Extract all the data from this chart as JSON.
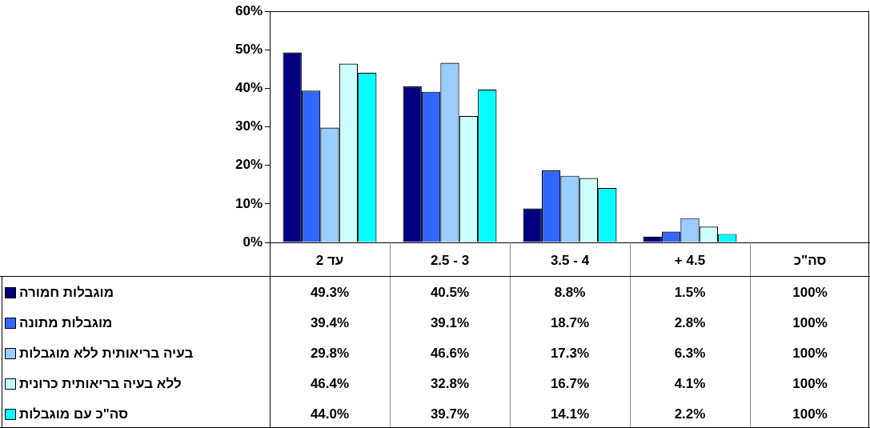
{
  "chart_data": {
    "type": "bar",
    "categories": [
      "עד 2",
      "3 - 2.5",
      "4 - 3.5",
      "4.5 +",
      "סה\"כ"
    ],
    "series": [
      {
        "name": "מוגבלות חמורה",
        "color": "#000080",
        "values": [
          49.3,
          40.5,
          8.8,
          1.5,
          null
        ],
        "value_labels": [
          "49.3%",
          "40.5%",
          "8.8%",
          "1.5%",
          "100%"
        ]
      },
      {
        "name": "מוגבלות מתונה",
        "color": "#3366ff",
        "values": [
          39.4,
          39.1,
          18.7,
          2.8,
          null
        ],
        "value_labels": [
          "39.4%",
          "39.1%",
          "18.7%",
          "2.8%",
          "100%"
        ]
      },
      {
        "name": "בעיה בריאותית ללא מוגבלות",
        "color": "#99ccff",
        "values": [
          29.8,
          46.6,
          17.3,
          6.3,
          null
        ],
        "value_labels": [
          "29.8%",
          "46.6%",
          "17.3%",
          "6.3%",
          "100%"
        ]
      },
      {
        "name": "ללא בעיה בריאותית כרונית",
        "color": "#ccffff",
        "values": [
          46.4,
          32.8,
          16.7,
          4.1,
          null
        ],
        "value_labels": [
          "46.4%",
          "32.8%",
          "16.7%",
          "4.1%",
          "100%"
        ]
      },
      {
        "name": "סה\"כ עם מוגבלות",
        "color": "#00ffff",
        "values": [
          44.0,
          39.7,
          14.1,
          2.2,
          null
        ],
        "value_labels": [
          "44.0%",
          "39.7%",
          "14.1%",
          "2.2%",
          "100%"
        ]
      }
    ],
    "ylim": [
      0,
      60
    ],
    "yticks": [
      {
        "value": 0,
        "label": "0%"
      },
      {
        "value": 10,
        "label": "10%"
      },
      {
        "value": 20,
        "label": "20%"
      },
      {
        "value": 30,
        "label": "30%"
      },
      {
        "value": 40,
        "label": "40%"
      },
      {
        "value": 50,
        "label": "50%"
      },
      {
        "value": 60,
        "label": "60%"
      }
    ],
    "grid": false,
    "legend": "bottom left"
  }
}
